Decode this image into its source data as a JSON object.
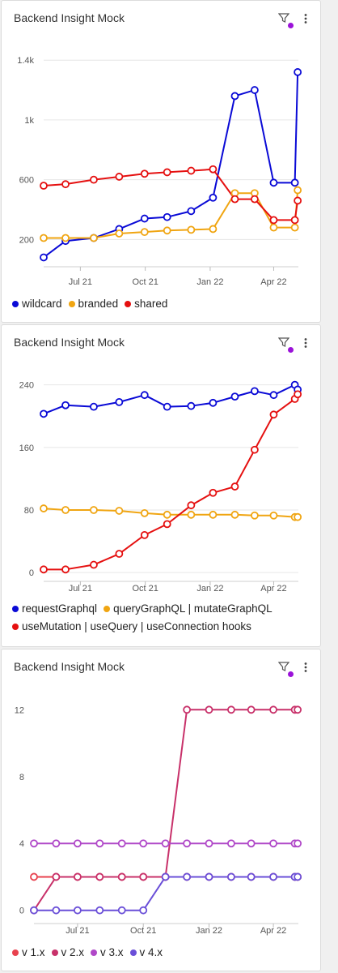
{
  "cards": [
    {
      "title": "Backend Insight Mock",
      "icons": {
        "filter": "filter-icon",
        "menu": "vertical-dots-icon"
      },
      "filter_indicator_color": "#9b12d9",
      "legend": [
        {
          "label": "wildcard",
          "color": "#0a0ad6"
        },
        {
          "label": "branded",
          "color": "#f0a512"
        },
        {
          "label": "shared",
          "color": "#e51010"
        }
      ]
    },
    {
      "title": "Backend Insight Mock",
      "icons": {
        "filter": "filter-icon",
        "menu": "vertical-dots-icon"
      },
      "filter_indicator_color": "#9b12d9",
      "legend": [
        {
          "label": "requestGraphql",
          "color": "#0a0ad6"
        },
        {
          "label": "queryGraphQL | mutateGraphQL",
          "color": "#f0a512"
        },
        {
          "label": "useMutation | useQuery | useConnection hooks",
          "color": "#e51010"
        }
      ]
    },
    {
      "title": "Backend Insight Mock",
      "icons": {
        "filter": "filter-icon",
        "menu": "vertical-dots-icon"
      },
      "filter_indicator_color": "#9b12d9",
      "legend": [
        {
          "label": "v 1.x",
          "color": "#e8414e"
        },
        {
          "label": "v 2.x",
          "color": "#c8316a"
        },
        {
          "label": "v 3.x",
          "color": "#b048c8"
        },
        {
          "label": "v 4.x",
          "color": "#6a4fd8"
        }
      ]
    }
  ],
  "chart_data": [
    {
      "type": "line",
      "x": [
        "2021-05-15",
        "2021-06-15",
        "2021-07-15",
        "2021-08-15",
        "2021-09-15",
        "2021-10-15",
        "2021-11-15",
        "2021-12-15",
        "2022-01-15",
        "2022-02-15",
        "2022-03-15",
        "2022-04-15",
        "2022-05-15",
        "2022-05-31"
      ],
      "x_ticks": [
        "Jul 21",
        "Oct 21",
        "Jan 22",
        "Apr 22"
      ],
      "y_ticks": [
        "200",
        "600",
        "1k",
        "1.4k"
      ],
      "ylim": [
        50,
        1450
      ],
      "grid": true,
      "legend_position": "bottom",
      "series": [
        {
          "name": "wildcard",
          "color": "#0a0ad6",
          "points": [
            [
              "2021-05-10",
              80
            ],
            [
              "2021-06-10",
              190
            ],
            [
              "2021-07-20",
              210
            ],
            [
              "2021-08-25",
              270
            ],
            [
              "2021-09-30",
              340
            ],
            [
              "2021-11-01",
              350
            ],
            [
              "2021-12-05",
              390
            ],
            [
              "2022-01-05",
              480
            ],
            [
              "2022-02-05",
              1160
            ],
            [
              "2022-03-05",
              1200
            ],
            [
              "2022-04-01",
              580
            ],
            [
              "2022-05-01",
              580
            ],
            [
              "2022-05-05",
              1320
            ]
          ]
        },
        {
          "name": "branded",
          "color": "#f0a512",
          "points": [
            [
              "2021-05-10",
              210
            ],
            [
              "2021-06-10",
              210
            ],
            [
              "2021-07-20",
              210
            ],
            [
              "2021-08-25",
              240
            ],
            [
              "2021-09-30",
              250
            ],
            [
              "2021-11-01",
              260
            ],
            [
              "2021-12-05",
              265
            ],
            [
              "2022-01-05",
              270
            ],
            [
              "2022-02-05",
              510
            ],
            [
              "2022-03-05",
              510
            ],
            [
              "2022-04-01",
              280
            ],
            [
              "2022-05-01",
              280
            ],
            [
              "2022-05-05",
              530
            ]
          ]
        },
        {
          "name": "shared",
          "color": "#e51010",
          "points": [
            [
              "2021-05-10",
              560
            ],
            [
              "2021-06-10",
              570
            ],
            [
              "2021-07-20",
              600
            ],
            [
              "2021-08-25",
              620
            ],
            [
              "2021-09-30",
              640
            ],
            [
              "2021-11-01",
              650
            ],
            [
              "2021-12-05",
              660
            ],
            [
              "2022-01-05",
              670
            ],
            [
              "2022-02-05",
              470
            ],
            [
              "2022-03-05",
              470
            ],
            [
              "2022-04-01",
              330
            ],
            [
              "2022-05-01",
              330
            ],
            [
              "2022-05-05",
              460
            ]
          ]
        }
      ]
    },
    {
      "type": "line",
      "x_ticks": [
        "Jul 21",
        "Oct 21",
        "Jan 22",
        "Apr 22"
      ],
      "y_ticks": [
        "0",
        "80",
        "160",
        "240"
      ],
      "ylim": [
        -5,
        250
      ],
      "grid": true,
      "legend_position": "bottom",
      "series": [
        {
          "name": "requestGraphql",
          "color": "#0a0ad6",
          "points": [
            [
              "2021-05-10",
              203
            ],
            [
              "2021-06-10",
              214
            ],
            [
              "2021-07-20",
              212
            ],
            [
              "2021-08-25",
              218
            ],
            [
              "2021-09-30",
              227
            ],
            [
              "2021-11-01",
              212
            ],
            [
              "2021-12-05",
              213
            ],
            [
              "2022-01-05",
              217
            ],
            [
              "2022-02-05",
              225
            ],
            [
              "2022-03-05",
              232
            ],
            [
              "2022-04-01",
              227
            ],
            [
              "2022-05-01",
              240
            ],
            [
              "2022-05-05",
              234
            ]
          ]
        },
        {
          "name": "queryGraphQL | mutateGraphQL",
          "color": "#f0a512",
          "points": [
            [
              "2021-05-10",
              82
            ],
            [
              "2021-06-10",
              80
            ],
            [
              "2021-07-20",
              80
            ],
            [
              "2021-08-25",
              79
            ],
            [
              "2021-09-30",
              76
            ],
            [
              "2021-11-01",
              74
            ],
            [
              "2021-12-05",
              74
            ],
            [
              "2022-01-05",
              74
            ],
            [
              "2022-02-05",
              74
            ],
            [
              "2022-03-05",
              73
            ],
            [
              "2022-04-01",
              73
            ],
            [
              "2022-05-01",
              71
            ],
            [
              "2022-05-05",
              71
            ]
          ]
        },
        {
          "name": "useMutation | useQuery | useConnection hooks",
          "color": "#e51010",
          "points": [
            [
              "2021-05-10",
              4
            ],
            [
              "2021-06-10",
              4
            ],
            [
              "2021-07-20",
              10
            ],
            [
              "2021-08-25",
              24
            ],
            [
              "2021-09-30",
              48
            ],
            [
              "2021-11-01",
              62
            ],
            [
              "2021-12-05",
              86
            ],
            [
              "2022-01-05",
              102
            ],
            [
              "2022-02-05",
              110
            ],
            [
              "2022-03-05",
              157
            ],
            [
              "2022-04-01",
              202
            ],
            [
              "2022-05-01",
              222
            ],
            [
              "2022-05-05",
              228
            ]
          ]
        }
      ]
    },
    {
      "type": "line",
      "x_ticks": [
        "Jul 21",
        "Oct 21",
        "Jan 22",
        "Apr 22"
      ],
      "y_ticks": [
        "0",
        "4",
        "8",
        "12"
      ],
      "ylim": [
        -0.5,
        12.5
      ],
      "grid": false,
      "legend_position": "bottom",
      "series": [
        {
          "name": "v 1.x",
          "color": "#e8414e",
          "points": [
            [
              "2021-05-01",
              2
            ],
            [
              "2021-06-01",
              2
            ],
            [
              "2021-07-01",
              2
            ],
            [
              "2021-08-01",
              2
            ],
            [
              "2021-09-01",
              2
            ],
            [
              "2021-10-01",
              2
            ],
            [
              "2021-11-01",
              2
            ],
            [
              "2021-12-01",
              2
            ],
            [
              "2022-01-01",
              2
            ],
            [
              "2022-02-01",
              2
            ],
            [
              "2022-03-01",
              2
            ],
            [
              "2022-04-01",
              2
            ],
            [
              "2022-05-01",
              2
            ],
            [
              "2022-05-05",
              2
            ]
          ]
        },
        {
          "name": "v 2.x",
          "color": "#c8316a",
          "points": [
            [
              "2021-05-01",
              0
            ],
            [
              "2021-06-01",
              2
            ],
            [
              "2021-07-01",
              2
            ],
            [
              "2021-08-01",
              2
            ],
            [
              "2021-09-01",
              2
            ],
            [
              "2021-10-01",
              2
            ],
            [
              "2021-11-01",
              2
            ],
            [
              "2021-12-01",
              12
            ],
            [
              "2022-01-01",
              12
            ],
            [
              "2022-02-01",
              12
            ],
            [
              "2022-03-01",
              12
            ],
            [
              "2022-04-01",
              12
            ],
            [
              "2022-05-01",
              12
            ],
            [
              "2022-05-05",
              12
            ]
          ]
        },
        {
          "name": "v 3.x",
          "color": "#b048c8",
          "points": [
            [
              "2021-05-01",
              4
            ],
            [
              "2021-06-01",
              4
            ],
            [
              "2021-07-01",
              4
            ],
            [
              "2021-08-01",
              4
            ],
            [
              "2021-09-01",
              4
            ],
            [
              "2021-10-01",
              4
            ],
            [
              "2021-11-01",
              4
            ],
            [
              "2021-12-01",
              4
            ],
            [
              "2022-01-01",
              4
            ],
            [
              "2022-02-01",
              4
            ],
            [
              "2022-03-01",
              4
            ],
            [
              "2022-04-01",
              4
            ],
            [
              "2022-05-01",
              4
            ],
            [
              "2022-05-05",
              4
            ]
          ]
        },
        {
          "name": "v 4.x",
          "color": "#6a4fd8",
          "points": [
            [
              "2021-05-01",
              0
            ],
            [
              "2021-06-01",
              0
            ],
            [
              "2021-07-01",
              0
            ],
            [
              "2021-08-01",
              0
            ],
            [
              "2021-09-01",
              0
            ],
            [
              "2021-10-01",
              0
            ],
            [
              "2021-11-01",
              2
            ],
            [
              "2021-12-01",
              2
            ],
            [
              "2022-01-01",
              2
            ],
            [
              "2022-02-01",
              2
            ],
            [
              "2022-03-01",
              2
            ],
            [
              "2022-04-01",
              2
            ],
            [
              "2022-05-01",
              2
            ],
            [
              "2022-05-05",
              2
            ]
          ]
        }
      ]
    }
  ]
}
